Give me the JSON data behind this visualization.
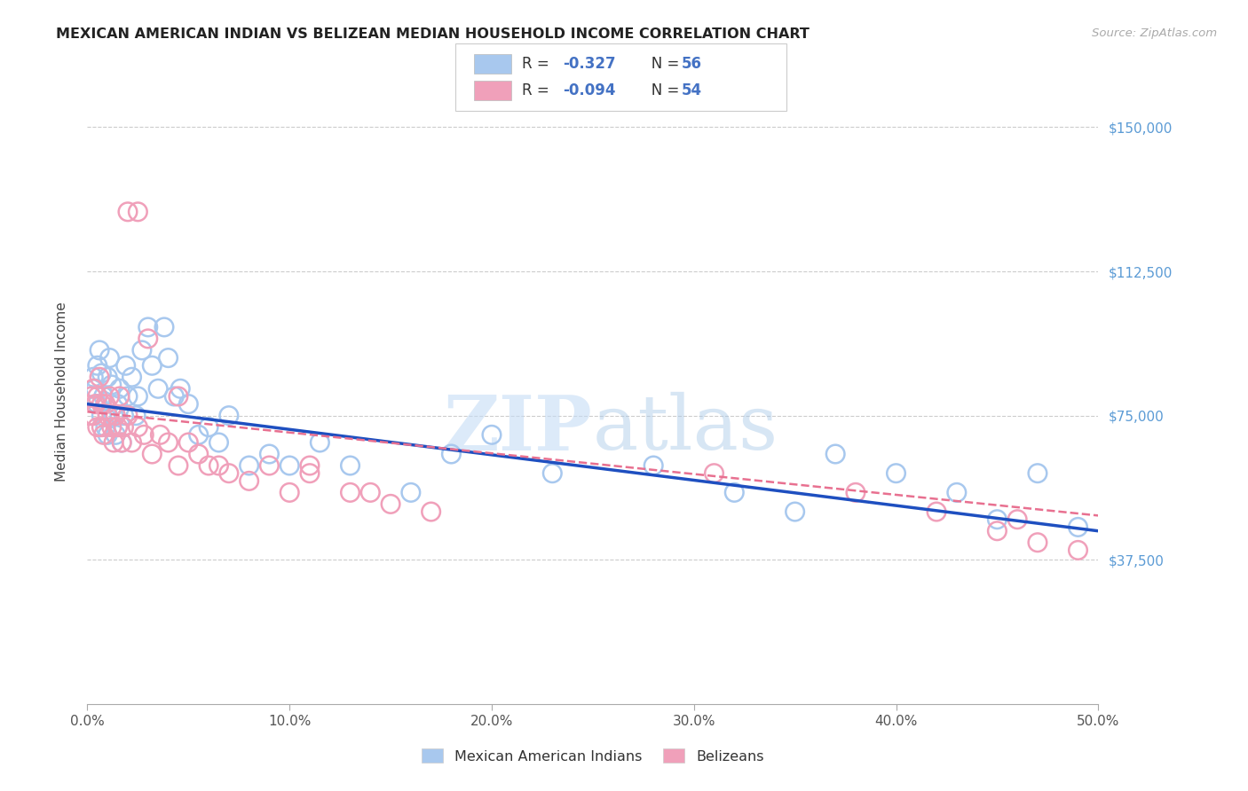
{
  "title": "MEXICAN AMERICAN INDIAN VS BELIZEAN MEDIAN HOUSEHOLD INCOME CORRELATION CHART",
  "source": "Source: ZipAtlas.com",
  "ylabel": "Median Household Income",
  "xlim": [
    0.0,
    0.5
  ],
  "ylim": [
    0,
    162500
  ],
  "yticks": [
    37500,
    75000,
    112500,
    150000
  ],
  "ytick_labels": [
    "$37,500",
    "$75,000",
    "$112,500",
    "$150,000"
  ],
  "xticks": [
    0.0,
    0.1,
    0.2,
    0.3,
    0.4,
    0.5
  ],
  "xtick_labels": [
    "0.0%",
    "10.0%",
    "20.0%",
    "30.0%",
    "40.0%",
    "50.0%"
  ],
  "blue_color": "#A8C8EE",
  "pink_color": "#F0A0BA",
  "blue_line_color": "#1E4FC0",
  "pink_line_color": "#E87090",
  "watermark_text": "ZIPatlas",
  "legend_r1": "-0.327",
  "legend_n1": "56",
  "legend_r2": "-0.094",
  "legend_n2": "54",
  "blue_x": [
    0.002,
    0.003,
    0.004,
    0.005,
    0.005,
    0.006,
    0.007,
    0.007,
    0.008,
    0.009,
    0.01,
    0.01,
    0.011,
    0.012,
    0.013,
    0.014,
    0.015,
    0.016,
    0.017,
    0.018,
    0.019,
    0.02,
    0.022,
    0.024,
    0.025,
    0.027,
    0.03,
    0.032,
    0.035,
    0.038,
    0.04,
    0.043,
    0.046,
    0.05,
    0.055,
    0.06,
    0.065,
    0.07,
    0.08,
    0.09,
    0.1,
    0.115,
    0.13,
    0.16,
    0.18,
    0.2,
    0.23,
    0.28,
    0.32,
    0.35,
    0.37,
    0.4,
    0.43,
    0.45,
    0.47,
    0.49
  ],
  "blue_y": [
    80000,
    85000,
    82000,
    78000,
    88000,
    92000,
    86000,
    75000,
    80000,
    72000,
    70000,
    85000,
    90000,
    83000,
    75000,
    70000,
    78000,
    82000,
    68000,
    75000,
    88000,
    80000,
    85000,
    75000,
    80000,
    92000,
    98000,
    88000,
    82000,
    98000,
    90000,
    80000,
    82000,
    78000,
    70000,
    72000,
    68000,
    75000,
    62000,
    65000,
    62000,
    68000,
    62000,
    55000,
    65000,
    70000,
    60000,
    62000,
    55000,
    50000,
    65000,
    60000,
    55000,
    48000,
    60000,
    46000
  ],
  "pink_x": [
    0.001,
    0.002,
    0.003,
    0.003,
    0.004,
    0.005,
    0.005,
    0.006,
    0.007,
    0.007,
    0.008,
    0.009,
    0.01,
    0.011,
    0.012,
    0.013,
    0.014,
    0.015,
    0.016,
    0.017,
    0.018,
    0.02,
    0.022,
    0.025,
    0.028,
    0.032,
    0.036,
    0.04,
    0.045,
    0.05,
    0.055,
    0.06,
    0.07,
    0.08,
    0.09,
    0.1,
    0.11,
    0.13,
    0.15,
    0.17,
    0.02,
    0.025,
    0.03,
    0.045,
    0.065,
    0.11,
    0.14,
    0.31,
    0.38,
    0.42,
    0.45,
    0.46,
    0.47,
    0.49
  ],
  "pink_y": [
    75000,
    80000,
    75000,
    82000,
    78000,
    72000,
    80000,
    85000,
    78000,
    72000,
    70000,
    78000,
    75000,
    80000,
    72000,
    68000,
    75000,
    72000,
    80000,
    68000,
    72000,
    75000,
    68000,
    72000,
    70000,
    65000,
    70000,
    68000,
    62000,
    68000,
    65000,
    62000,
    60000,
    58000,
    62000,
    55000,
    60000,
    55000,
    52000,
    50000,
    128000,
    128000,
    95000,
    80000,
    62000,
    62000,
    55000,
    60000,
    55000,
    50000,
    45000,
    48000,
    42000,
    40000
  ]
}
